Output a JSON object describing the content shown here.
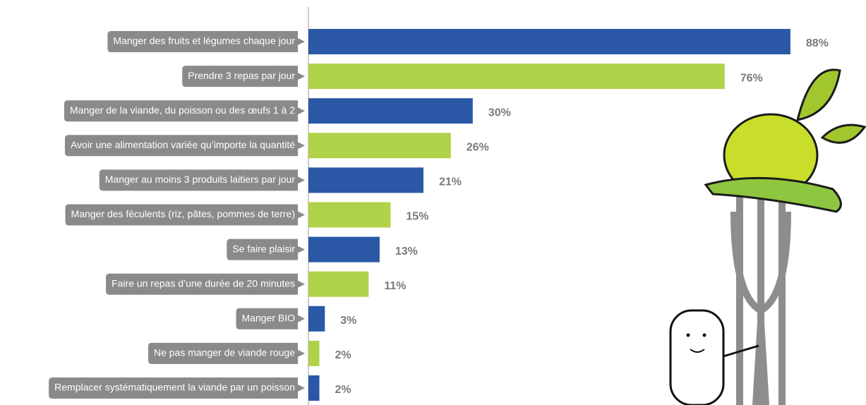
{
  "chart_data": {
    "type": "barh",
    "categories": [
      "Manger des fruits et légumes chaque jour",
      "Prendre 3 repas par jour",
      "Manger de la viande, du poisson ou des œufs 1 à 2",
      "Avoir une alimentation variée qu’importe la quantité",
      "Manger au moins 3 produits laitiers par jour",
      "Manger des féculents (riz, pâtes, pommes de terre)",
      "Se faire plaisir",
      "Faire un repas d’une durée de 20 minutes",
      "Manger BIO",
      "Ne pas manger de viande rouge",
      "Remplacer systématiquement la viande par un poisson"
    ],
    "values": [
      88,
      76,
      30,
      26,
      21,
      15,
      13,
      11,
      3,
      2,
      2
    ],
    "value_labels": [
      "88%",
      "76%",
      "30%",
      "26%",
      "21%",
      "15%",
      "13%",
      "11%",
      "3%",
      "2%",
      "2%"
    ],
    "colors": [
      "#2a58a6",
      "#b0d24a",
      "#2a58a6",
      "#b0d24a",
      "#2a58a6",
      "#b0d24a",
      "#2a58a6",
      "#b0d24a",
      "#2a58a6",
      "#b0d24a",
      "#2a58a6"
    ],
    "xlim": [
      0,
      100
    ]
  }
}
